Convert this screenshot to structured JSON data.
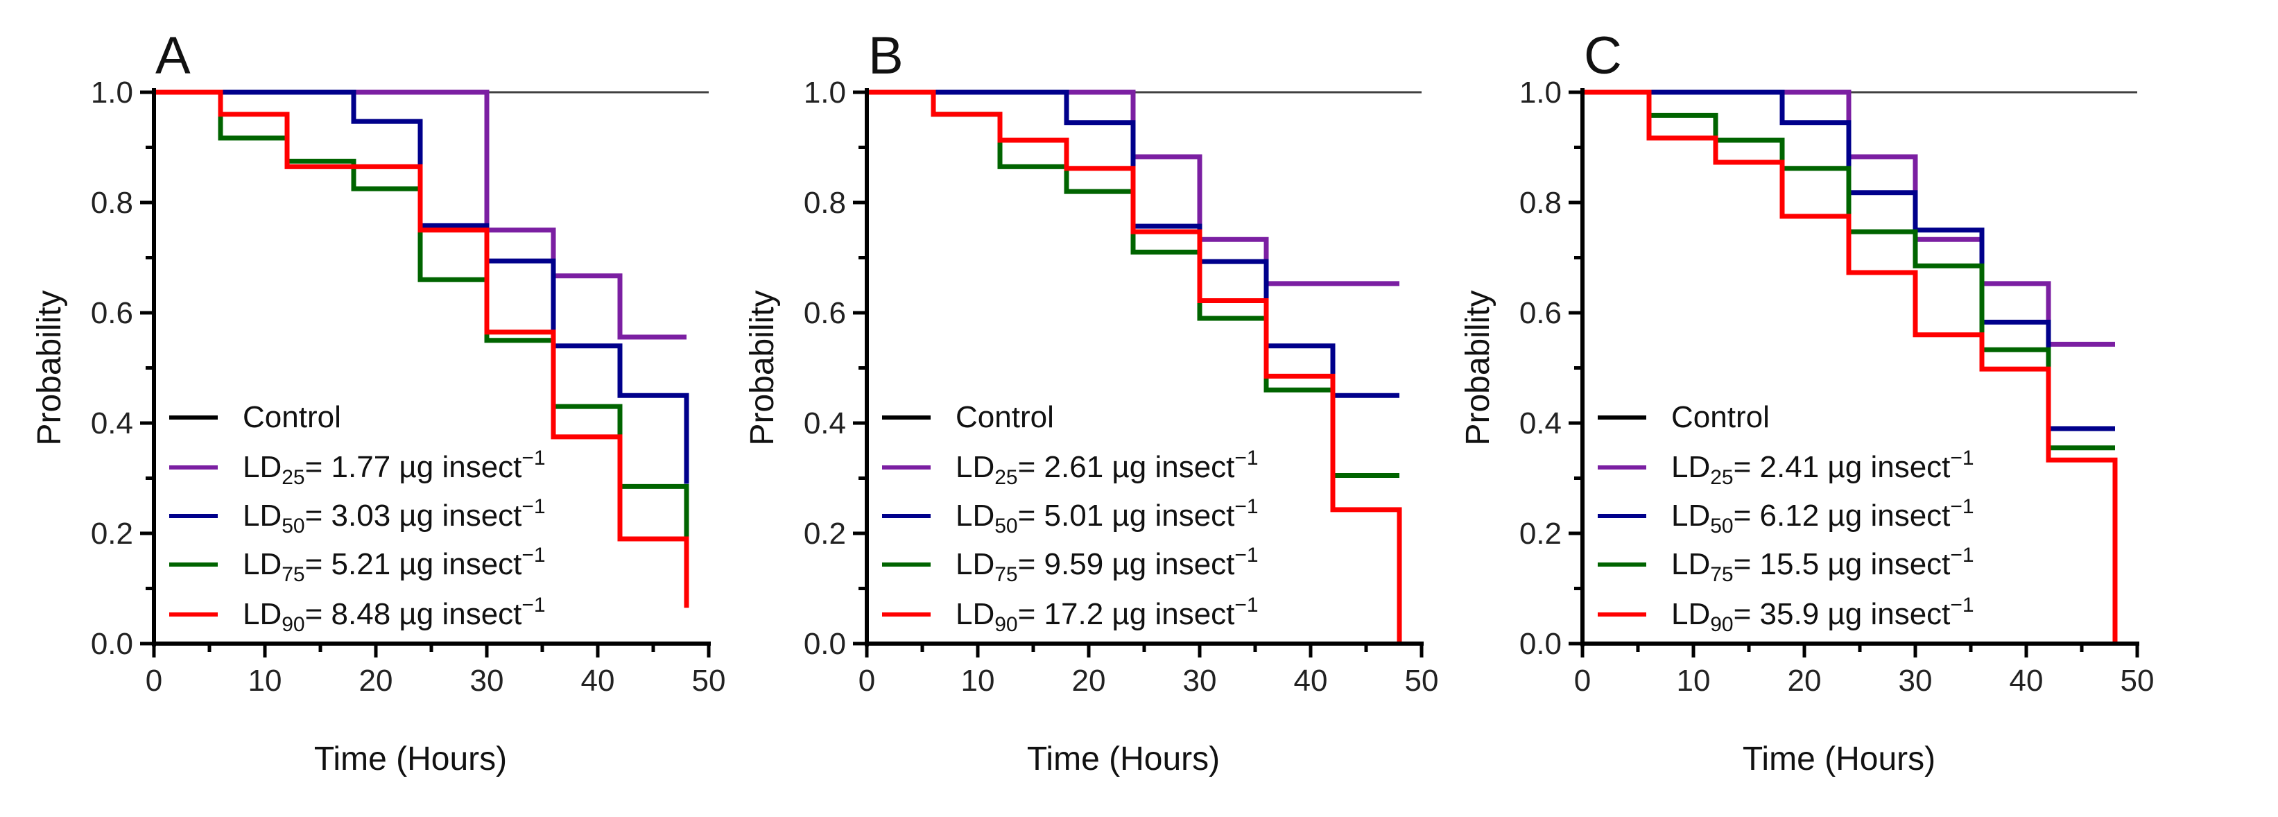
{
  "chart_data": [
    {
      "type": "line",
      "step": true,
      "panel_label": "A",
      "xlabel": "Time (Hours)",
      "ylabel": "Probability",
      "xlim": [
        0,
        50
      ],
      "ylim": [
        0,
        1.0
      ],
      "xticks": [
        "0",
        "10",
        "20",
        "30",
        "40",
        "50"
      ],
      "yticks": [
        "0.0",
        "0.2",
        "0.4",
        "0.6",
        "0.8",
        "1.0"
      ],
      "legend_position": "bottom-left",
      "x": [
        0,
        6,
        12,
        18,
        24,
        30,
        36,
        42,
        48
      ],
      "series": [
        {
          "name": "Control",
          "label": {
            "prefix": "Control",
            "sub": "",
            "rest": "",
            "sup": ""
          },
          "color": "#000000",
          "values": [
            1,
            1,
            1,
            1,
            1,
            1,
            1,
            1,
            1
          ]
        },
        {
          "name": "LD25",
          "label": {
            "prefix": "LD",
            "sub": "25",
            "rest": "= 1.77 µg insect",
            "sup": "−1"
          },
          "color": "#7b1fa2",
          "values": [
            1,
            1,
            1,
            1,
            1,
            0.75,
            0.667,
            0.556,
            0.556
          ]
        },
        {
          "name": "LD50",
          "label": {
            "prefix": "LD",
            "sub": "50",
            "rest": "= 3.03 µg insect",
            "sup": "−1"
          },
          "color": "#00008b",
          "values": [
            1,
            1,
            1,
            0.947,
            0.758,
            0.694,
            0.54,
            0.45,
            0.29
          ]
        },
        {
          "name": "LD75",
          "label": {
            "prefix": "LD",
            "sub": "75",
            "rest": "= 5.21 µg insect",
            "sup": "−1"
          },
          "color": "#006400",
          "values": [
            1,
            0.917,
            0.875,
            0.825,
            0.66,
            0.55,
            0.43,
            0.285,
            0.19
          ]
        },
        {
          "name": "LD90",
          "label": {
            "prefix": "LD",
            "sub": "90",
            "rest": "= 8.48 µg insect",
            "sup": "−1"
          },
          "color": "#ff0000",
          "values": [
            1,
            0.96,
            0.865,
            0.865,
            0.75,
            0.565,
            0.375,
            0.19,
            0.065
          ]
        }
      ]
    },
    {
      "type": "line",
      "step": true,
      "panel_label": "B",
      "xlabel": "Time (Hours)",
      "ylabel": "Probability",
      "xlim": [
        0,
        50
      ],
      "ylim": [
        0,
        1.0
      ],
      "xticks": [
        "0",
        "10",
        "20",
        "30",
        "40",
        "50"
      ],
      "yticks": [
        "0.0",
        "0.2",
        "0.4",
        "0.6",
        "0.8",
        "1.0"
      ],
      "legend_position": "bottom-left",
      "x": [
        0,
        6,
        12,
        18,
        24,
        30,
        36,
        42,
        48
      ],
      "series": [
        {
          "name": "Control",
          "label": {
            "prefix": "Control",
            "sub": "",
            "rest": "",
            "sup": ""
          },
          "color": "#000000",
          "values": [
            1,
            1,
            1,
            1,
            1,
            1,
            1,
            1,
            1
          ]
        },
        {
          "name": "LD25",
          "label": {
            "prefix": "LD",
            "sub": "25",
            "rest": "= 2.61 µg insect",
            "sup": "−1"
          },
          "color": "#7b1fa2",
          "values": [
            1,
            1,
            1,
            1,
            0.883,
            0.733,
            0.653,
            0.653,
            0.653
          ]
        },
        {
          "name": "LD50",
          "label": {
            "prefix": "LD",
            "sub": "50",
            "rest": "= 5.01 µg insect",
            "sup": "−1"
          },
          "color": "#00008b",
          "values": [
            1,
            1,
            1,
            0.945,
            0.757,
            0.693,
            0.54,
            0.45,
            0.45
          ]
        },
        {
          "name": "LD75",
          "label": {
            "prefix": "LD",
            "sub": "75",
            "rest": "= 9.59 µg insect",
            "sup": "−1"
          },
          "color": "#006400",
          "values": [
            1,
            0.96,
            0.865,
            0.82,
            0.71,
            0.59,
            0.46,
            0.305,
            0.305
          ]
        },
        {
          "name": "LD90",
          "label": {
            "prefix": "LD",
            "sub": "90",
            "rest": "= 17.2 µg insect",
            "sup": "−1"
          },
          "color": "#ff0000",
          "values": [
            1,
            0.96,
            0.913,
            0.862,
            0.747,
            0.622,
            0.485,
            0.243,
            0
          ]
        }
      ]
    },
    {
      "type": "line",
      "step": true,
      "panel_label": "C",
      "xlabel": "Time (Hours)",
      "ylabel": "Probability",
      "xlim": [
        0,
        50
      ],
      "ylim": [
        0,
        1.0
      ],
      "xticks": [
        "0",
        "10",
        "20",
        "30",
        "40",
        "50"
      ],
      "yticks": [
        "0.0",
        "0.2",
        "0.4",
        "0.6",
        "0.8",
        "1.0"
      ],
      "legend_position": "bottom-left",
      "x": [
        0,
        6,
        12,
        18,
        24,
        30,
        36,
        42,
        48
      ],
      "series": [
        {
          "name": "Control",
          "label": {
            "prefix": "Control",
            "sub": "",
            "rest": "",
            "sup": ""
          },
          "color": "#000000",
          "values": [
            1,
            1,
            1,
            1,
            1,
            1,
            1,
            1,
            1
          ]
        },
        {
          "name": "LD25",
          "label": {
            "prefix": "LD",
            "sub": "25",
            "rest": "= 2.41 µg insect",
            "sup": "−1"
          },
          "color": "#7b1fa2",
          "values": [
            1,
            1,
            1,
            1,
            0.883,
            0.733,
            0.653,
            0.543,
            0.543
          ]
        },
        {
          "name": "LD50",
          "label": {
            "prefix": "LD",
            "sub": "50",
            "rest": "= 6.12 µg insect",
            "sup": "−1"
          },
          "color": "#00008b",
          "values": [
            1,
            1,
            1,
            0.945,
            0.818,
            0.75,
            0.583,
            0.39,
            0.39
          ]
        },
        {
          "name": "LD75",
          "label": {
            "prefix": "LD",
            "sub": "75",
            "rest": "= 15.5 µg insect",
            "sup": "−1"
          },
          "color": "#006400",
          "values": [
            1,
            0.958,
            0.913,
            0.862,
            0.747,
            0.685,
            0.533,
            0.355,
            0.355
          ]
        },
        {
          "name": "LD90",
          "label": {
            "prefix": "LD",
            "sub": "90",
            "rest": "= 35.9 µg insect",
            "sup": "−1"
          },
          "color": "#ff0000",
          "values": [
            1,
            0.917,
            0.873,
            0.775,
            0.673,
            0.56,
            0.498,
            0.333,
            0
          ]
        }
      ]
    }
  ]
}
